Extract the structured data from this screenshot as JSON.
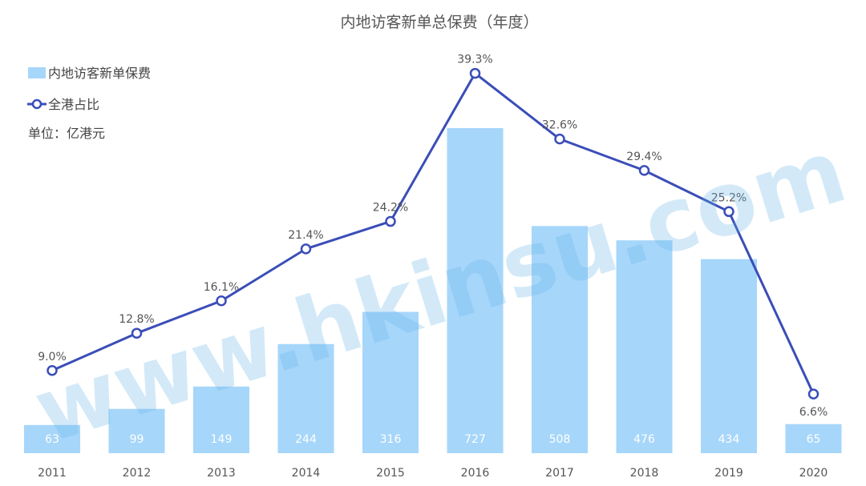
{
  "chart_data": {
    "type": "bar",
    "title": "内地访客新单总保费（年度）",
    "categories": [
      "2011",
      "2012",
      "2013",
      "2014",
      "2015",
      "2016",
      "2017",
      "2018",
      "2019",
      "2020"
    ],
    "series": [
      {
        "name": "内地访客新单保费",
        "kind": "bar",
        "values": [
          63,
          99,
          149,
          244,
          316,
          727,
          508,
          476,
          434,
          65
        ],
        "color": "#a6d6fa"
      },
      {
        "name": "全港占比",
        "kind": "line",
        "values": [
          9.0,
          12.8,
          16.1,
          21.4,
          24.2,
          39.3,
          32.6,
          29.4,
          25.2,
          6.6
        ],
        "labels": [
          "9.0%",
          "12.8%",
          "16.1%",
          "21.4%",
          "24.2%",
          "39.3%",
          "32.6%",
          "29.4%",
          "25.2%",
          "6.6%"
        ],
        "color": "#3a4db8"
      }
    ],
    "unit_note": "单位：亿港元",
    "legend_position": "top-left",
    "grid": false
  },
  "watermark": "www.hkinsu.com",
  "colors": {
    "bar": "#a6d6fa",
    "line": "#3a4db8"
  }
}
